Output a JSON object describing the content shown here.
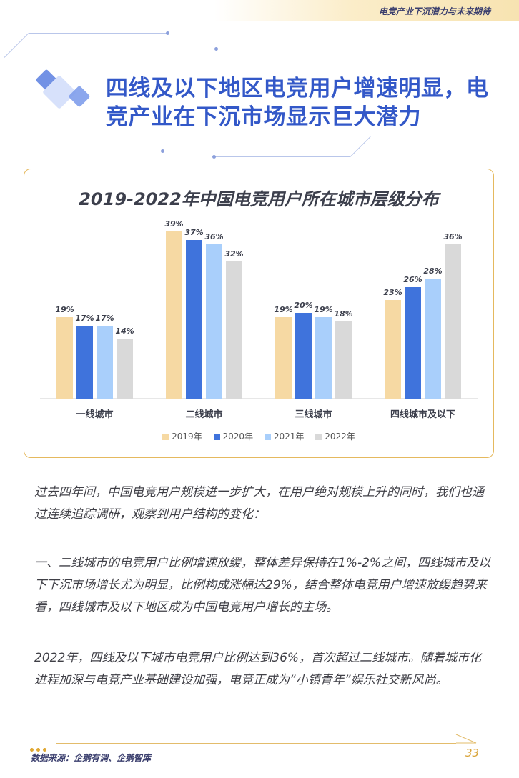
{
  "header": {
    "section_title": "电竞产业下沉潜力与未来期待"
  },
  "main_title": {
    "line1": "四线及以下地区电竞用户增速明显，电",
    "line2": "竞产业在下沉市场显示巨大潜力"
  },
  "colors": {
    "accent": "#3358c8",
    "card_border": "#e5b95e",
    "y2019": "#f6d9a3",
    "y2020": "#3f73dc",
    "y2021": "#a9cffb",
    "y2022": "#d9d9d9"
  },
  "chart_data": {
    "type": "bar",
    "title": "2019-2022年中国电竞用户所在城市层级分布",
    "categories": [
      "一线城市",
      "二线城市",
      "三线城市",
      "四线城市及以下"
    ],
    "series": [
      {
        "name": "2019年",
        "values": [
          19,
          39,
          19,
          23
        ],
        "labels": [
          "19%",
          "39%",
          "19%",
          "23%"
        ]
      },
      {
        "name": "2020年",
        "values": [
          17,
          37,
          20,
          26
        ],
        "labels": [
          "17%",
          "37%",
          "20%",
          "26%"
        ]
      },
      {
        "name": "2021年",
        "values": [
          17,
          36,
          19,
          28
        ],
        "labels": [
          "17%",
          "36%",
          "19%",
          "28%"
        ]
      },
      {
        "name": "2022年",
        "values": [
          14,
          32,
          18,
          36
        ],
        "labels": [
          "14%",
          "32%",
          "18%",
          "36%"
        ]
      }
    ],
    "ylim": [
      0,
      40
    ],
    "unit": "%",
    "grid": false,
    "legend_position": "bottom"
  },
  "body": {
    "p1": "过去四年间，中国电竞用户规模进一步扩大，在用户绝对规模上升的同时，我们也通过连续追踪调研，观察到用户结构的变化：",
    "p2": "一、二线城市的电竞用户比例增速放缓，整体差异保持在1%-2%之间，四线城市及以下下沉市场增长尤为明显，比例构成涨幅达29%，结合整体电竞用户增速放缓趋势来看，四线城市及以下地区成为中国电竞用户增长的主场。",
    "p3": "2022年，四线及以下城市电竞用户比例达到36%，首次超过二线城市。随着城市化进程加深与电竞产业基础建设加强，电竞正成为“小镇青年”娱乐社交新风尚。"
  },
  "footer": {
    "source": "数据来源：企鹅有调、企鹅智库",
    "page_number": "33"
  }
}
